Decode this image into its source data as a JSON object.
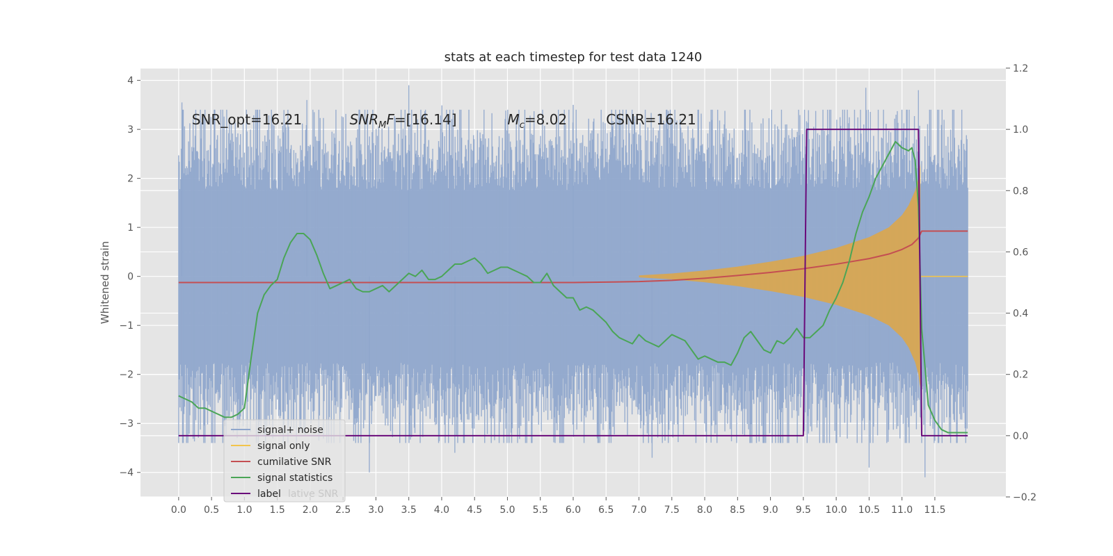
{
  "chart_data": {
    "type": "line",
    "title": "stats at each timestep for test data 1240",
    "ylabel": "Whitened strain",
    "xlim": [
      -0.58,
      12.58
    ],
    "ylim": [
      -4.5,
      4.25
    ],
    "y2lim": [
      -0.2,
      1.2
    ],
    "grid": true,
    "x_ticks": [
      0.0,
      0.5,
      1.0,
      1.5,
      2.0,
      2.5,
      3.0,
      3.5,
      4.0,
      4.5,
      5.0,
      5.5,
      6.0,
      6.5,
      7.0,
      7.5,
      8.0,
      8.5,
      9.0,
      9.5,
      10.0,
      10.5,
      11.0,
      11.5
    ],
    "x_tick_labels": [
      "0.0",
      "0.5",
      "1.0",
      "1.5",
      "2.0",
      "2.5",
      "3.0",
      "3.5",
      "4.0",
      "4.5",
      "5.0",
      "5.5",
      "6.0",
      "6.5",
      "7.0",
      "7.5",
      "8.0",
      "8.5",
      "9.0",
      "9.5",
      "10.0",
      "10.5",
      "11.0",
      "11.5"
    ],
    "y_ticks": [
      -4,
      -3,
      -2,
      -1,
      0,
      1,
      2,
      3,
      4
    ],
    "y_tick_labels": [
      "−4",
      "−3",
      "−2",
      "−1",
      "0",
      "1",
      "2",
      "3",
      "4"
    ],
    "y2_ticks": [
      -0.2,
      0.0,
      0.2,
      0.4,
      0.6,
      0.8,
      1.0,
      1.2
    ],
    "y2_tick_labels": [
      "−0.2",
      "0.0",
      "0.2",
      "0.4",
      "0.6",
      "0.8",
      "1.0",
      "1.2"
    ],
    "annotations": [
      {
        "text": "SNR_opt=16.21",
        "x": 0.2,
        "y": 3.1
      },
      {
        "text": "SNR",
        "sub": "M",
        "rest": "F=[16.14]",
        "x": 2.6,
        "y": 3.1
      },
      {
        "text": "M",
        "sub": "c",
        "rest": "=8.02",
        "x": 5.0,
        "y": 3.1
      },
      {
        "text": "CSNR=16.21",
        "x": 6.5,
        "y": 3.1
      }
    ],
    "legend": {
      "placement": "lower-left",
      "ghost_text": "lative SNR",
      "entries": [
        {
          "label": "signal+ noise",
          "color": "#8fa6cc"
        },
        {
          "label": "signal only",
          "color": "#f2c44b"
        },
        {
          "label": "cumilative SNR",
          "color": "#c44e52"
        },
        {
          "label": "signal statistics",
          "color": "#4aa556"
        },
        {
          "label": "label",
          "color": "#6a0a7a"
        }
      ]
    },
    "series": [
      {
        "name": "signal+ noise",
        "axis": "left",
        "color": "#8fa6cc",
        "style": "noise band",
        "x_range": [
          0.0,
          12.0
        ],
        "typical_range": [
          -2.2,
          2.2
        ],
        "max_peaks": [
          {
            "x": 3.5,
            "y": 3.9
          },
          {
            "x": 10.45,
            "y": 3.85
          },
          {
            "x": 11.25,
            "y": 3.8
          },
          {
            "x": 0.05,
            "y": 3.55
          },
          {
            "x": 1.95,
            "y": 3.6
          },
          {
            "x": 6.0,
            "y": 3.5
          }
        ],
        "min_peaks": [
          {
            "x": 2.9,
            "y": -4.0
          },
          {
            "x": 11.35,
            "y": -4.1
          },
          {
            "x": 10.5,
            "y": -3.9
          },
          {
            "x": 7.2,
            "y": -3.7
          },
          {
            "x": 4.2,
            "y": -3.6
          }
        ]
      },
      {
        "name": "signal only",
        "axis": "left",
        "color": "#f2c44b",
        "style": "chirp envelope",
        "x": [
          7.0,
          7.5,
          8.0,
          8.5,
          9.0,
          9.5,
          10.0,
          10.5,
          10.8,
          11.0,
          11.1,
          11.2,
          11.25,
          11.28
        ],
        "amplitude": [
          0.02,
          0.06,
          0.12,
          0.2,
          0.3,
          0.42,
          0.58,
          0.8,
          1.0,
          1.25,
          1.45,
          1.75,
          2.0,
          2.3
        ]
      },
      {
        "name": "cumilative SNR",
        "axis": "right",
        "color": "#c44e52",
        "x": [
          0.0,
          6.0,
          7.0,
          7.5,
          8.0,
          8.5,
          9.0,
          9.5,
          10.0,
          10.5,
          10.8,
          11.0,
          11.15,
          11.25,
          11.3,
          12.0
        ],
        "y": [
          0.5,
          0.5,
          0.503,
          0.507,
          0.514,
          0.523,
          0.533,
          0.545,
          0.56,
          0.578,
          0.593,
          0.608,
          0.624,
          0.645,
          0.668,
          0.668
        ]
      },
      {
        "name": "signal statistics",
        "axis": "right",
        "color": "#4aa556",
        "x": [
          0.0,
          0.1,
          0.2,
          0.3,
          0.4,
          0.5,
          0.6,
          0.7,
          0.8,
          0.9,
          1.0,
          1.1,
          1.2,
          1.3,
          1.4,
          1.5,
          1.6,
          1.7,
          1.8,
          1.9,
          2.0,
          2.1,
          2.2,
          2.3,
          2.4,
          2.5,
          2.6,
          2.7,
          2.8,
          2.9,
          3.0,
          3.1,
          3.2,
          3.3,
          3.4,
          3.5,
          3.6,
          3.7,
          3.8,
          3.9,
          4.0,
          4.1,
          4.2,
          4.3,
          4.4,
          4.5,
          4.6,
          4.7,
          4.8,
          4.9,
          5.0,
          5.1,
          5.2,
          5.3,
          5.4,
          5.5,
          5.6,
          5.7,
          5.8,
          5.9,
          6.0,
          6.1,
          6.2,
          6.3,
          6.4,
          6.5,
          6.6,
          6.7,
          6.8,
          6.9,
          7.0,
          7.1,
          7.2,
          7.3,
          7.4,
          7.5,
          7.6,
          7.7,
          7.8,
          7.9,
          8.0,
          8.1,
          8.2,
          8.3,
          8.4,
          8.5,
          8.6,
          8.7,
          8.8,
          8.9,
          9.0,
          9.1,
          9.2,
          9.3,
          9.4,
          9.5,
          9.6,
          9.7,
          9.8,
          9.9,
          10.0,
          10.1,
          10.2,
          10.3,
          10.4,
          10.5,
          10.6,
          10.7,
          10.8,
          10.9,
          11.0,
          11.1,
          11.15,
          11.2,
          11.25,
          11.3,
          11.4,
          11.5,
          11.6,
          11.7,
          11.8,
          12.0
        ],
        "y": [
          0.13,
          0.12,
          0.11,
          0.09,
          0.09,
          0.08,
          0.07,
          0.06,
          0.06,
          0.07,
          0.09,
          0.25,
          0.4,
          0.46,
          0.49,
          0.51,
          0.58,
          0.63,
          0.66,
          0.66,
          0.64,
          0.59,
          0.53,
          0.48,
          0.49,
          0.5,
          0.51,
          0.48,
          0.47,
          0.47,
          0.48,
          0.49,
          0.47,
          0.49,
          0.51,
          0.53,
          0.52,
          0.54,
          0.51,
          0.51,
          0.52,
          0.54,
          0.56,
          0.56,
          0.57,
          0.58,
          0.56,
          0.53,
          0.54,
          0.55,
          0.55,
          0.54,
          0.53,
          0.52,
          0.5,
          0.5,
          0.53,
          0.49,
          0.47,
          0.45,
          0.45,
          0.41,
          0.42,
          0.41,
          0.39,
          0.37,
          0.34,
          0.32,
          0.31,
          0.3,
          0.33,
          0.31,
          0.3,
          0.29,
          0.31,
          0.33,
          0.32,
          0.31,
          0.28,
          0.25,
          0.26,
          0.25,
          0.24,
          0.24,
          0.23,
          0.27,
          0.32,
          0.34,
          0.31,
          0.28,
          0.27,
          0.31,
          0.3,
          0.32,
          0.35,
          0.32,
          0.32,
          0.34,
          0.36,
          0.41,
          0.45,
          0.5,
          0.57,
          0.66,
          0.73,
          0.78,
          0.84,
          0.88,
          0.92,
          0.96,
          0.94,
          0.93,
          0.94,
          0.9,
          0.75,
          0.35,
          0.1,
          0.05,
          0.02,
          0.01,
          0.01,
          0.01
        ]
      },
      {
        "name": "label",
        "axis": "right",
        "color": "#6a0a7a",
        "x": [
          0.0,
          9.5,
          9.55,
          11.25,
          11.3,
          12.0
        ],
        "y": [
          0.0,
          0.0,
          1.0,
          1.0,
          0.0,
          0.0
        ]
      }
    ]
  }
}
